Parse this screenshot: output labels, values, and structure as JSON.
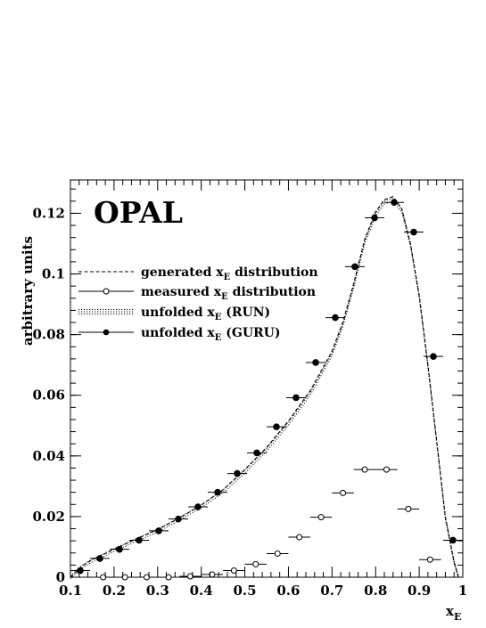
{
  "chart_data": {
    "type": "scatter",
    "title": "",
    "brand_label": "OPAL",
    "xlabel": "x",
    "xlabel_sub": "E",
    "ylabel": "arbitrary units",
    "xlim": [
      0.1,
      1.0
    ],
    "ylim": [
      0,
      0.131
    ],
    "x_ticks": [
      "0.1",
      "0.2",
      "0.3",
      "0.4",
      "0.5",
      "0.6",
      "0.7",
      "0.8",
      "0.9",
      "1"
    ],
    "y_ticks": [
      "0",
      "0.02",
      "0.04",
      "0.06",
      "0.08",
      "0.1",
      "0.12"
    ],
    "grid": false,
    "legend_position": "upper-left",
    "legend": [
      {
        "pre": "generated x",
        "sub": "E",
        "post": " distribution",
        "style": "dashed"
      },
      {
        "pre": "measured x",
        "sub": "E",
        "post": " distribution",
        "style": "open-marker"
      },
      {
        "pre": "unfolded x",
        "sub": "E",
        "post": " (RUN)",
        "style": "dotted-band"
      },
      {
        "pre": "unfolded x",
        "sub": "E",
        "post": " (GURU)",
        "style": "filled-marker"
      }
    ],
    "series": [
      {
        "name": "generated x_E distribution",
        "style": "dashed",
        "x": [
          0.1,
          0.125,
          0.15,
          0.175,
          0.2,
          0.25,
          0.3,
          0.35,
          0.4,
          0.45,
          0.5,
          0.55,
          0.6,
          0.65,
          0.7,
          0.725,
          0.75,
          0.775,
          0.8,
          0.82,
          0.84,
          0.86,
          0.88,
          0.9,
          0.92,
          0.94,
          0.96,
          0.98,
          0.99
        ],
        "y": [
          0.0,
          0.0035,
          0.0058,
          0.0075,
          0.0092,
          0.0125,
          0.0157,
          0.0195,
          0.0238,
          0.0288,
          0.0355,
          0.0428,
          0.0515,
          0.0615,
          0.0745,
          0.0842,
          0.097,
          0.1115,
          0.1205,
          0.1245,
          0.1255,
          0.1215,
          0.11,
          0.093,
          0.07,
          0.045,
          0.02,
          0.005,
          0.0
        ]
      },
      {
        "name": "unfolded x_E (RUN)",
        "style": "dotted-band",
        "x": [
          0.1,
          0.125,
          0.15,
          0.175,
          0.2,
          0.25,
          0.3,
          0.35,
          0.4,
          0.45,
          0.5,
          0.55,
          0.6,
          0.65,
          0.7,
          0.725,
          0.75,
          0.775,
          0.8,
          0.82,
          0.84,
          0.86,
          0.88,
          0.9,
          0.92,
          0.94,
          0.96,
          0.98,
          0.99
        ],
        "y": [
          0.0,
          0.0033,
          0.0055,
          0.0072,
          0.009,
          0.0122,
          0.0154,
          0.0192,
          0.0234,
          0.0283,
          0.0348,
          0.042,
          0.0506,
          0.0605,
          0.0735,
          0.0832,
          0.096,
          0.1105,
          0.1195,
          0.1235,
          0.1245,
          0.1208,
          0.1095,
          0.0925,
          0.0695,
          0.0445,
          0.0195,
          0.005,
          0.0
        ]
      },
      {
        "name": "measured x_E distribution",
        "style": "open-marker",
        "x": [
          0.175,
          0.225,
          0.275,
          0.325,
          0.375,
          0.425,
          0.475,
          0.525,
          0.575,
          0.625,
          0.675,
          0.725,
          0.775,
          0.825,
          0.875,
          0.925
        ],
        "y": [
          0.0,
          0.0,
          0.0,
          0.0,
          0.0003,
          0.0009,
          0.0022,
          0.0043,
          0.0078,
          0.0132,
          0.0198,
          0.0278,
          0.0355,
          0.0355,
          0.0225,
          0.0058
        ],
        "x_err": 0.025
      },
      {
        "name": "unfolded x_E (GURU)",
        "style": "filled-marker",
        "x": [
          0.1225,
          0.1675,
          0.2125,
          0.2575,
          0.3025,
          0.3475,
          0.3925,
          0.4375,
          0.4825,
          0.5275,
          0.5725,
          0.6175,
          0.6625,
          0.7075,
          0.7525,
          0.7975,
          0.8425,
          0.8875,
          0.9325,
          0.9775
        ],
        "y": [
          0.0022,
          0.0062,
          0.0092,
          0.0122,
          0.0153,
          0.0192,
          0.0232,
          0.028,
          0.0342,
          0.041,
          0.0496,
          0.0592,
          0.0708,
          0.0856,
          0.1024,
          0.1185,
          0.1236,
          0.1138,
          0.0728,
          0.0122
        ],
        "x_err": 0.0225
      }
    ]
  }
}
